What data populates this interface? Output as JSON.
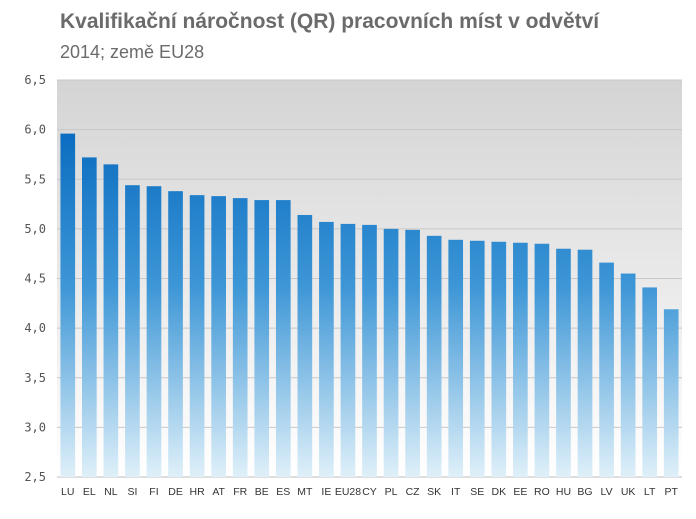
{
  "chart_data": {
    "type": "bar",
    "title": "Kvalifikační náročnost (QR)  pracovních míst v odvětví",
    "subtitle": "2014; země EU28",
    "categories": [
      "LU",
      "EL",
      "NL",
      "SI",
      "FI",
      "DE",
      "HR",
      "AT",
      "FR",
      "BE",
      "ES",
      "MT",
      "IE",
      "EU28",
      "CY",
      "PL",
      "CZ",
      "SK",
      "IT",
      "SE",
      "DK",
      "EE",
      "RO",
      "HU",
      "BG",
      "LV",
      "UK",
      "LT",
      "PT"
    ],
    "values": [
      5.96,
      5.72,
      5.65,
      5.44,
      5.43,
      5.38,
      5.34,
      5.33,
      5.31,
      5.29,
      5.29,
      5.14,
      5.07,
      5.05,
      5.04,
      5.0,
      4.99,
      4.93,
      4.89,
      4.88,
      4.87,
      4.86,
      4.85,
      4.8,
      4.79,
      4.66,
      4.55,
      4.41,
      4.19
    ],
    "ylim": [
      2.5,
      6.5
    ],
    "yticks": [
      "6,5",
      "6,0",
      "5,5",
      "5,0",
      "4,5",
      "4,0",
      "3,5",
      "3,0",
      "2,5"
    ],
    "xlabel": "",
    "ylabel": "",
    "grid": true,
    "legend": "none",
    "colors": {
      "bar_top": "#0a6cc0",
      "bar_bottom": "#dff0f9",
      "plot_bg_top": "#d4d4d4",
      "plot_bg_bottom": "#ffffff",
      "grid": "#c8c8c8"
    }
  }
}
